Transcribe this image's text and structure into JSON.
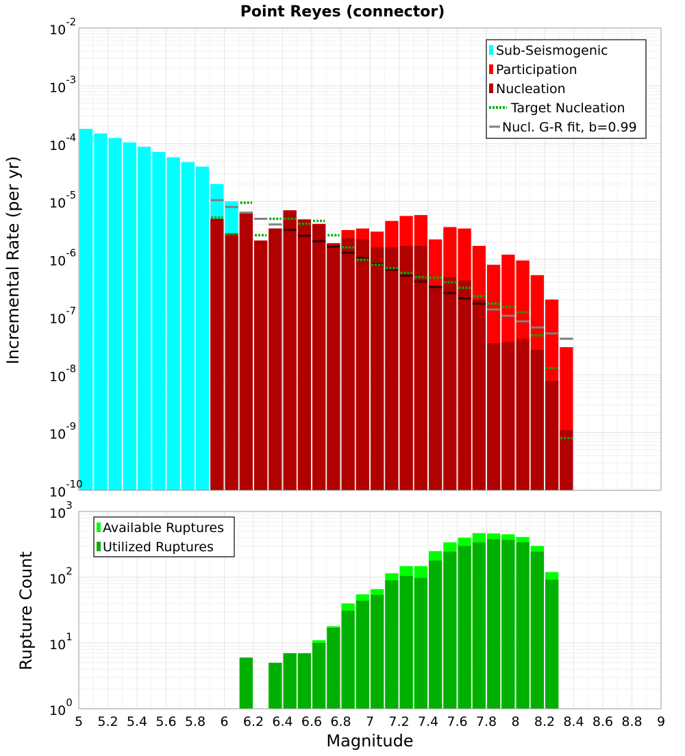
{
  "chart_data": [
    {
      "type": "bar",
      "title": "Point Reyes (connector)",
      "xlabel": "Magnitude",
      "ylabel": "Incremental Rate (per yr)",
      "yscale": "log",
      "xlim": [
        5,
        9
      ],
      "ylim_exponents": [
        -10,
        -2
      ],
      "bin_width": 0.1,
      "legend_position": "top-right",
      "series": [
        {
          "name": "Sub-Seismogenic",
          "color": "#00ffff",
          "x": [
            5.05,
            5.15,
            5.25,
            5.35,
            5.45,
            5.55,
            5.65,
            5.75,
            5.85,
            5.95,
            6.05
          ],
          "values": [
            0.00018,
            0.00015,
            0.000125,
            0.000105,
            8.8e-05,
            7.2e-05,
            5.8e-05,
            4.8e-05,
            4e-05,
            2e-05,
            1e-05
          ]
        },
        {
          "name": "Participation",
          "color": "#ff0000",
          "x": [
            5.95,
            6.05,
            6.15,
            6.25,
            6.35,
            6.45,
            6.55,
            6.65,
            6.75,
            6.85,
            6.95,
            7.05,
            7.15,
            7.25,
            7.35,
            7.45,
            7.55,
            7.65,
            7.75,
            7.85,
            7.95,
            8.05,
            8.15,
            8.25,
            8.35
          ],
          "values": [
            5e-06,
            2.8e-06,
            6.5e-06,
            2.1e-06,
            3.4e-06,
            7e-06,
            4.9e-06,
            4.1e-06,
            1.9e-06,
            3.2e-06,
            3.4e-06,
            3e-06,
            4.6e-06,
            5.6e-06,
            5.8e-06,
            2.2e-06,
            3.6e-06,
            3.4e-06,
            1.7e-06,
            8e-07,
            1.2e-06,
            9.5e-07,
            5.3e-07,
            2e-07,
            3e-08
          ]
        },
        {
          "name": "Nucleation",
          "color": "#b00000",
          "x": [
            5.95,
            6.05,
            6.15,
            6.25,
            6.35,
            6.45,
            6.55,
            6.65,
            6.75,
            6.85,
            6.95,
            7.05,
            7.15,
            7.25,
            7.35,
            7.45,
            7.55,
            7.65,
            7.75,
            7.85,
            7.95,
            8.05,
            8.15,
            8.25,
            8.35
          ],
          "values": [
            5e-06,
            2.7e-06,
            6.3e-06,
            2.1e-06,
            3.4e-06,
            7e-06,
            4.8e-06,
            4e-06,
            1.8e-06,
            2.3e-06,
            2.2e-06,
            1.6e-06,
            1.6e-06,
            1.7e-06,
            1.7e-06,
            3.5e-07,
            4.8e-07,
            4.3e-07,
            2e-07,
            3.5e-08,
            3.7e-08,
            4.2e-08,
            2.7e-08,
            7.8e-09,
            1.1e-09
          ]
        },
        {
          "name": "Target Nucleation",
          "color": "#00b000",
          "style": "dotted",
          "x": [
            5.95,
            6.05,
            6.15,
            6.25,
            6.35,
            6.45,
            6.55,
            6.65,
            6.75,
            6.85,
            6.95,
            7.05,
            7.15,
            7.25,
            7.35,
            7.45,
            7.55,
            7.65,
            7.75,
            7.85,
            7.95,
            8.05,
            8.15,
            8.25,
            8.35
          ],
          "values": [
            5.3e-06,
            2.7e-06,
            9.5e-06,
            2.6e-06,
            5e-06,
            5e-06,
            4.1e-06,
            4.6e-06,
            2.6e-06,
            1.6e-06,
            9.8e-07,
            8e-07,
            7e-07,
            5.8e-07,
            4.9e-07,
            4.8e-07,
            4e-07,
            3.2e-07,
            2.3e-07,
            1.7e-07,
            1.5e-07,
            1.2e-07,
            4.8e-08,
            1.3e-08,
            8e-10
          ]
        },
        {
          "name": "Nucl. G-R fit, b=0.99",
          "color": "#808080",
          "style": "solid",
          "x": [
            5.95,
            6.05,
            6.15,
            6.25,
            6.35,
            6.45,
            6.55,
            6.65,
            6.75,
            6.85,
            6.95,
            7.05,
            7.15,
            7.25,
            7.35,
            7.45,
            7.55,
            7.65,
            7.75,
            7.85,
            7.95,
            8.05,
            8.15,
            8.25,
            8.35
          ],
          "values": [
            1.05e-05,
            8e-06,
            6.4e-06,
            5e-06,
            4e-06,
            3.2e-06,
            2.55e-06,
            2.05e-06,
            1.65e-06,
            1.3e-06,
            1.05e-06,
            8.3e-07,
            6.6e-07,
            5.2e-07,
            4.1e-07,
            3.3e-07,
            2.6e-07,
            2.1e-07,
            1.7e-07,
            1.35e-07,
            1.05e-07,
            8.4e-08,
            6.6e-08,
            5.2e-08,
            4.2e-08
          ]
        }
      ],
      "legend": [
        "Sub-Seismogenic",
        "Participation",
        "Nucleation",
        "Target Nucleation",
        "Nucl. G-R fit, b=0.99"
      ]
    },
    {
      "type": "bar",
      "title": "",
      "xlabel": "Magnitude",
      "ylabel": "Rupture Count",
      "yscale": "log",
      "xlim": [
        5,
        9
      ],
      "ylim_exponents": [
        0,
        3
      ],
      "bin_width": 0.1,
      "legend_position": "top-left",
      "series": [
        {
          "name": "Available Ruptures",
          "color": "#00ff00",
          "x": [
            6.15,
            6.35,
            6.45,
            6.55,
            6.65,
            6.75,
            6.85,
            6.95,
            7.05,
            7.15,
            7.25,
            7.35,
            7.45,
            7.55,
            7.65,
            7.75,
            7.85,
            7.95,
            8.05,
            8.15,
            8.25
          ],
          "values": [
            6,
            5,
            7,
            7,
            11,
            18,
            40,
            55,
            66,
            115,
            148,
            148,
            250,
            340,
            400,
            470,
            465,
            450,
            410,
            300,
            120
          ]
        },
        {
          "name": "Utilized Ruptures",
          "color": "#00b000",
          "x": [
            6.15,
            6.35,
            6.45,
            6.55,
            6.65,
            6.75,
            6.85,
            6.95,
            7.05,
            7.15,
            7.25,
            7.35,
            7.45,
            7.55,
            7.65,
            7.75,
            7.85,
            7.95,
            8.05,
            8.15,
            8.25
          ],
          "values": [
            6,
            5,
            7,
            7,
            10,
            17,
            31,
            44,
            54,
            90,
            105,
            98,
            180,
            245,
            300,
            340,
            380,
            370,
            340,
            245,
            92
          ]
        }
      ],
      "legend": [
        "Available Ruptures",
        "Utilized Ruptures"
      ]
    }
  ],
  "x_ticks": [
    "5",
    "5.2",
    "5.4",
    "5.6",
    "5.8",
    "6",
    "6.2",
    "6.4",
    "6.6",
    "6.8",
    "7",
    "7.2",
    "7.4",
    "7.6",
    "7.8",
    "8",
    "8.2",
    "8.4",
    "8.6",
    "8.8",
    "9"
  ]
}
